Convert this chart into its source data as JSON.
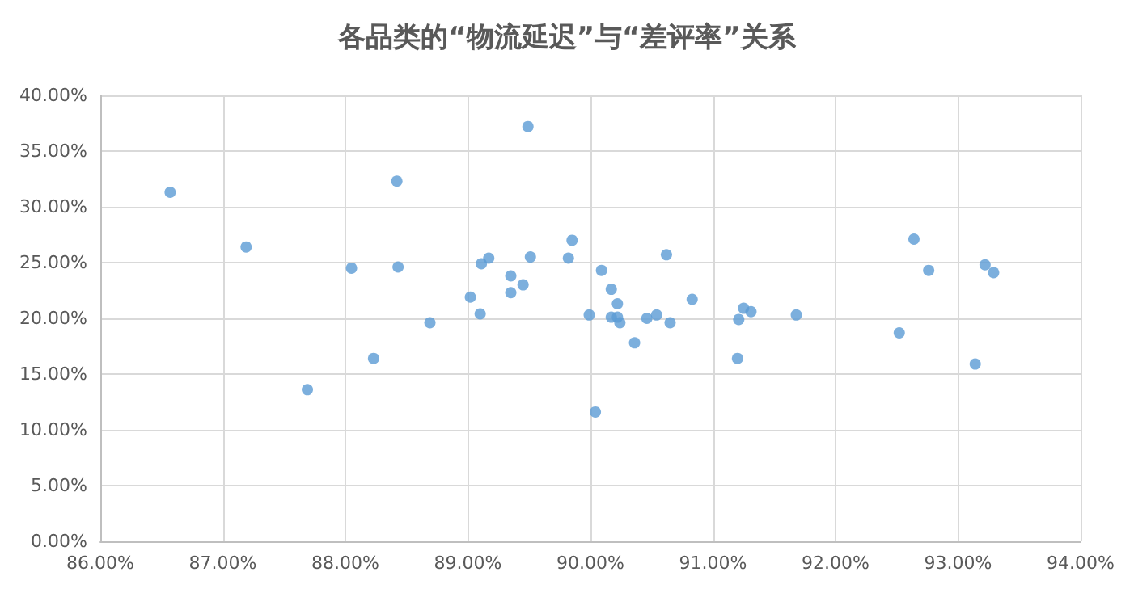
{
  "chart_data": {
    "type": "scatter",
    "title": "各品类的“物流延迟”与“差评率”关系",
    "marker": "circle",
    "grid": true,
    "x": [
      86.57,
      87.19,
      87.69,
      88.05,
      88.23,
      88.42,
      88.43,
      88.69,
      89.02,
      89.1,
      89.11,
      89.17,
      89.35,
      89.35,
      89.45,
      89.49,
      89.51,
      89.82,
      89.85,
      89.99,
      90.04,
      90.09,
      90.17,
      90.17,
      90.22,
      90.22,
      90.24,
      90.36,
      90.46,
      90.54,
      90.62,
      90.65,
      90.83,
      91.21,
      91.2,
      91.25,
      91.31,
      91.68,
      92.52,
      92.64,
      92.76,
      93.14,
      93.22,
      93.29
    ],
    "series": [
      {
        "color": "#5b9bd5",
        "values": [
          31.3,
          26.4,
          13.6,
          24.5,
          16.4,
          32.3,
          24.6,
          19.6,
          21.9,
          20.4,
          24.9,
          25.4,
          23.8,
          22.3,
          23.0,
          37.2,
          25.5,
          25.4,
          27.0,
          20.3,
          11.6,
          24.3,
          22.6,
          20.1,
          21.3,
          20.1,
          19.6,
          17.8,
          20.0,
          20.3,
          25.7,
          19.6,
          21.7,
          19.9,
          16.4,
          20.9,
          20.6,
          20.3,
          18.7,
          27.1,
          24.3,
          15.9,
          24.8,
          24.1
        ]
      }
    ],
    "xlim": [
      86,
      94
    ],
    "xticks": [
      {
        "value": 86,
        "label": "86.00%"
      },
      {
        "value": 87,
        "label": "87.00%"
      },
      {
        "value": 88,
        "label": "88.00%"
      },
      {
        "value": 89,
        "label": "89.00%"
      },
      {
        "value": 90,
        "label": "90.00%"
      },
      {
        "value": 91,
        "label": "91.00%"
      },
      {
        "value": 92,
        "label": "92.00%"
      },
      {
        "value": 93,
        "label": "93.00%"
      },
      {
        "value": 94,
        "label": "94.00%"
      }
    ],
    "ylim": [
      0,
      40
    ],
    "yticks": [
      {
        "value": 0,
        "label": "0.00%"
      },
      {
        "value": 5,
        "label": "5.00%"
      },
      {
        "value": 10,
        "label": "10.00%"
      },
      {
        "value": 15,
        "label": "15.00%"
      },
      {
        "value": 20,
        "label": "20.00%"
      },
      {
        "value": 25,
        "label": "25.00%"
      },
      {
        "value": 30,
        "label": "30.00%"
      },
      {
        "value": 35,
        "label": "35.00%"
      },
      {
        "value": 40,
        "label": "40.00%"
      }
    ]
  }
}
